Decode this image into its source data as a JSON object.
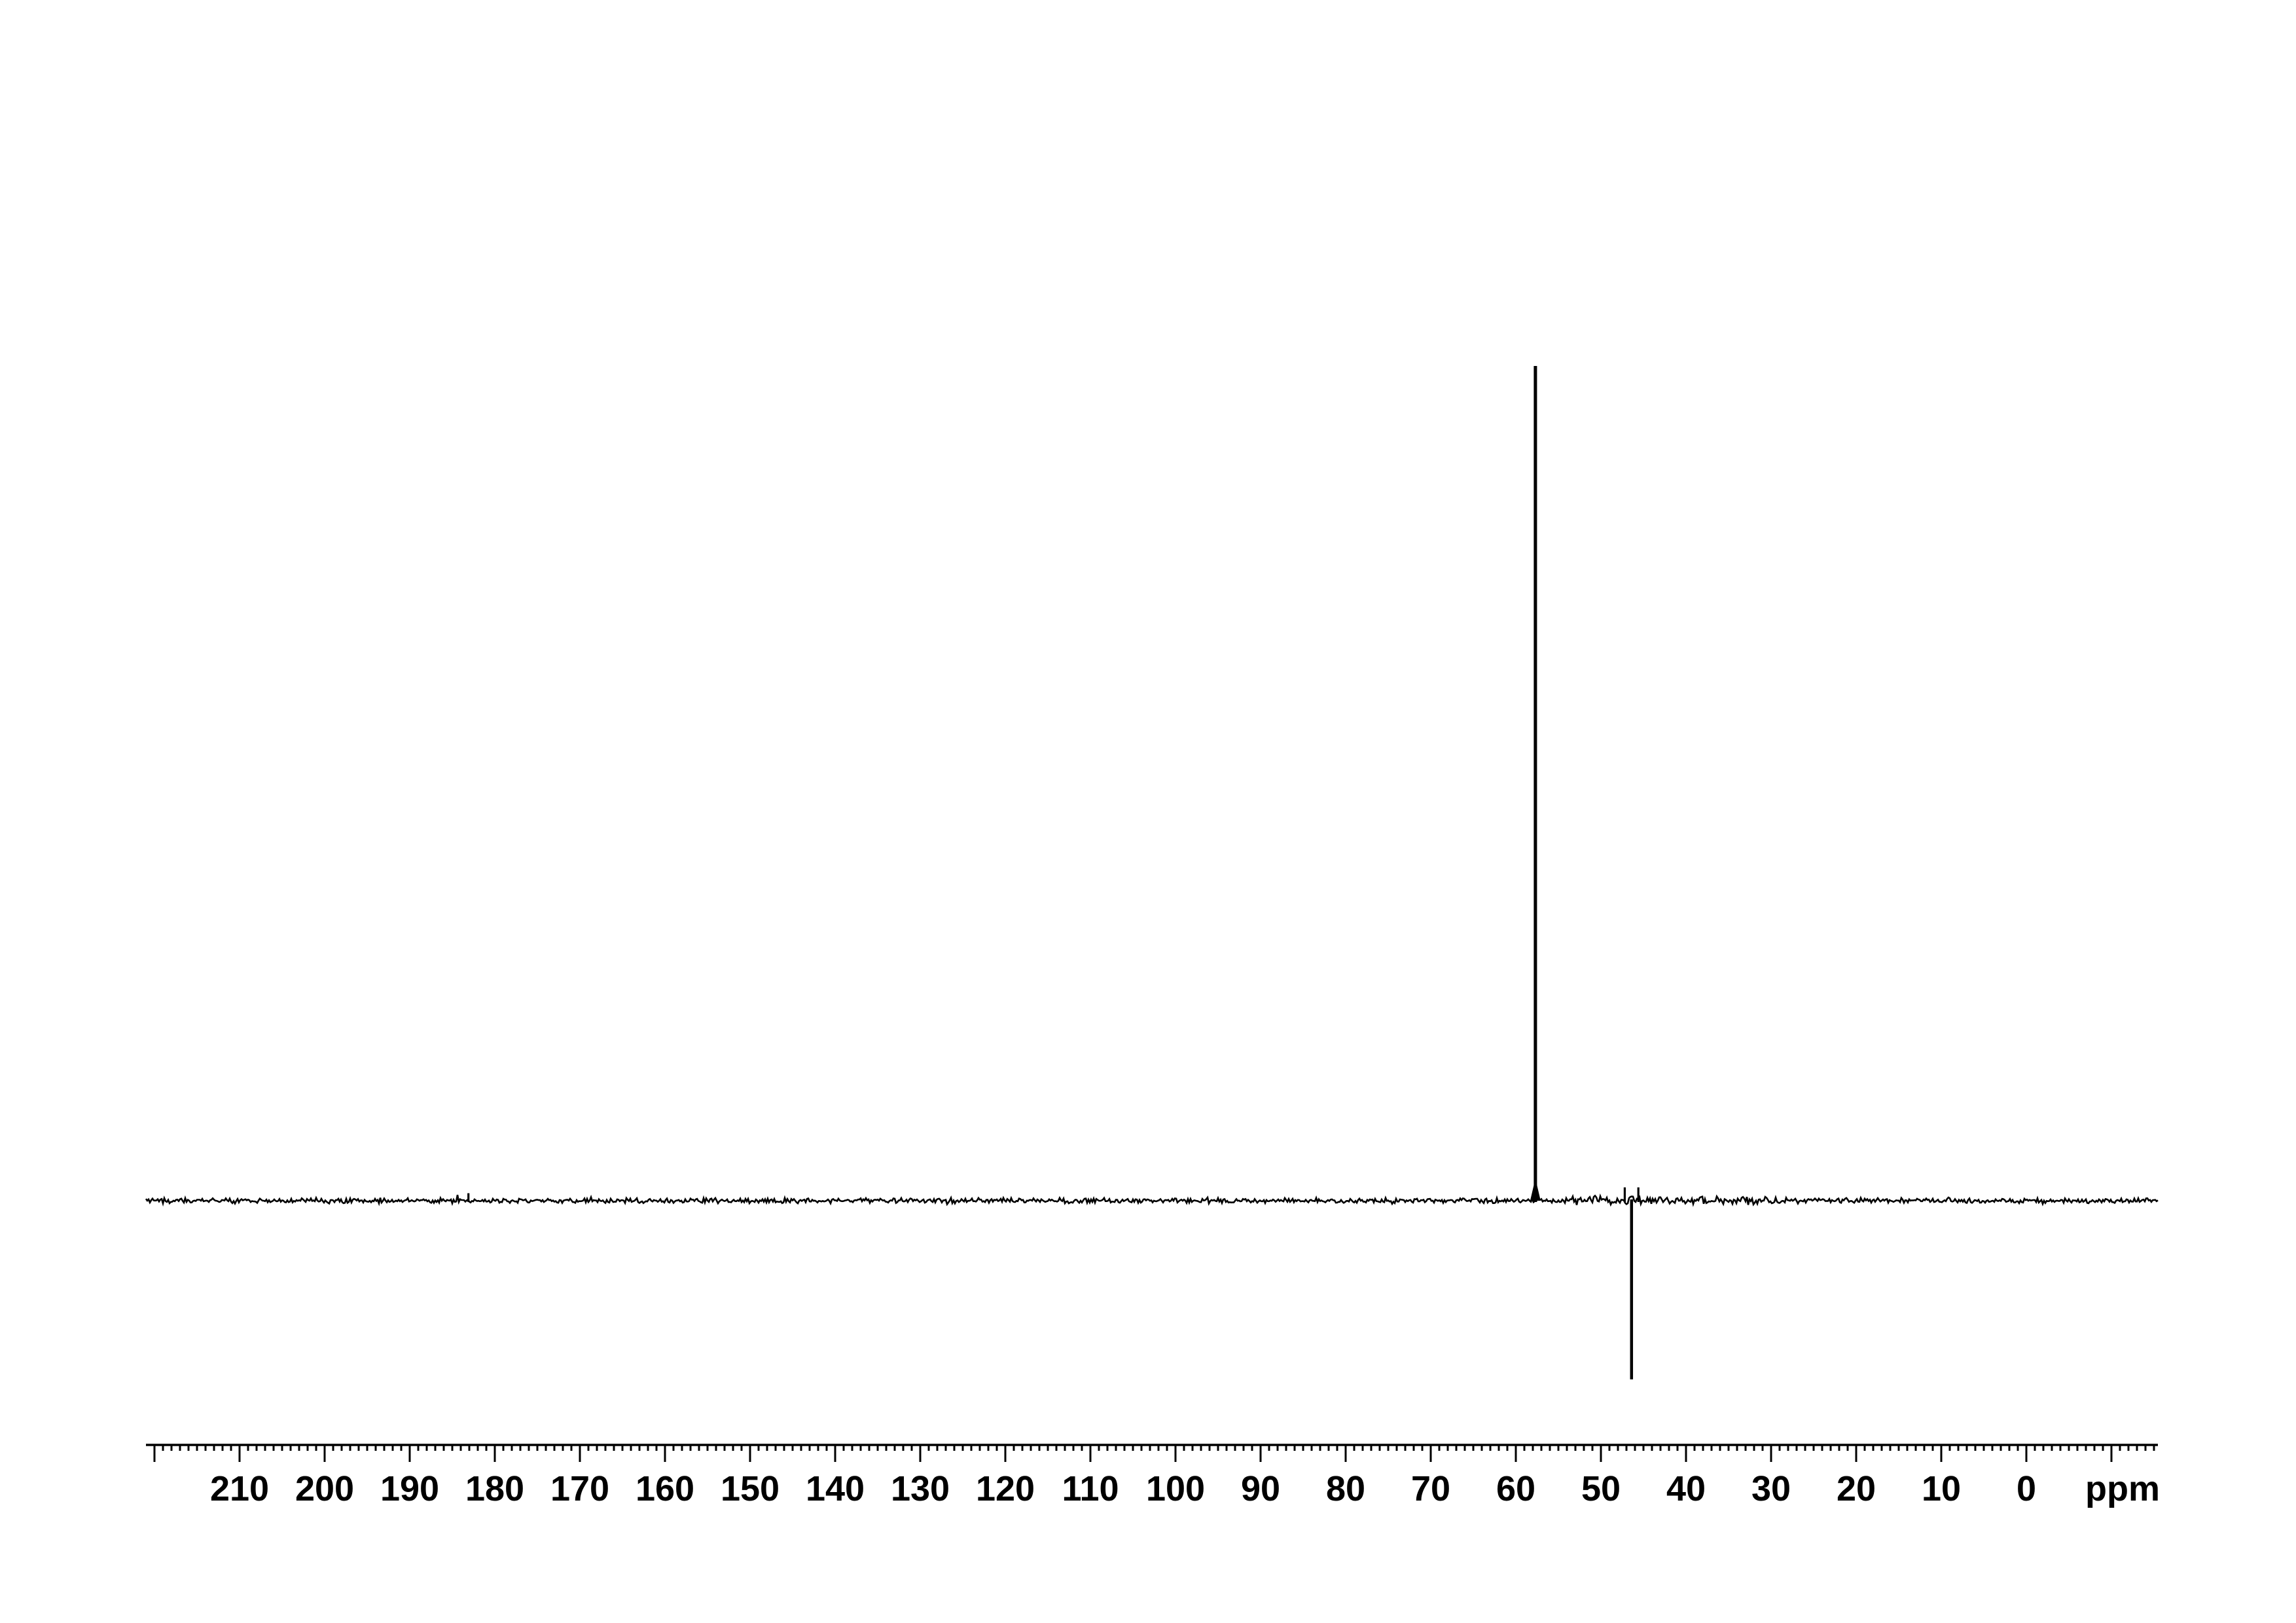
{
  "page": {
    "background_color": "#ffffff",
    "trace_color": "#000000"
  },
  "chart_data": {
    "type": "line",
    "subtype": "nmr-spectrum",
    "xlabel": "ppm",
    "x_axis": {
      "unit_label": "ppm",
      "direction": "reversed",
      "range_ppm": [
        221,
        -15.5
      ],
      "minor_tick_step_ppm": 1,
      "major_tick_step_ppm": 10,
      "major_ticks_ppm": [
        220,
        210,
        200,
        190,
        180,
        170,
        160,
        150,
        140,
        130,
        120,
        110,
        100,
        90,
        80,
        70,
        60,
        50,
        40,
        30,
        20,
        10,
        0,
        -10
      ],
      "labeled_ticks_ppm": [
        210,
        200,
        190,
        180,
        170,
        160,
        150,
        140,
        130,
        120,
        110,
        100,
        90,
        80,
        70,
        60,
        50,
        40,
        30,
        20,
        10,
        0
      ]
    },
    "y_axis": {
      "visible": false
    },
    "peaks": [
      {
        "ppm": 183.1,
        "rel_intensity": 0.009,
        "phase": "positive"
      },
      {
        "ppm": 57.7,
        "rel_intensity": 1.0,
        "phase": "positive"
      },
      {
        "ppm": 47.2,
        "rel_intensity": 0.016,
        "phase": "positive"
      },
      {
        "ppm": 46.4,
        "rel_intensity": -0.214,
        "phase": "negative"
      },
      {
        "ppm": 45.6,
        "rel_intensity": 0.016,
        "phase": "positive"
      }
    ],
    "noise": {
      "rel_amplitude": 0.002,
      "elevated_region_ppm": [
        55,
        29
      ],
      "elevated_factor": 1.7
    }
  }
}
